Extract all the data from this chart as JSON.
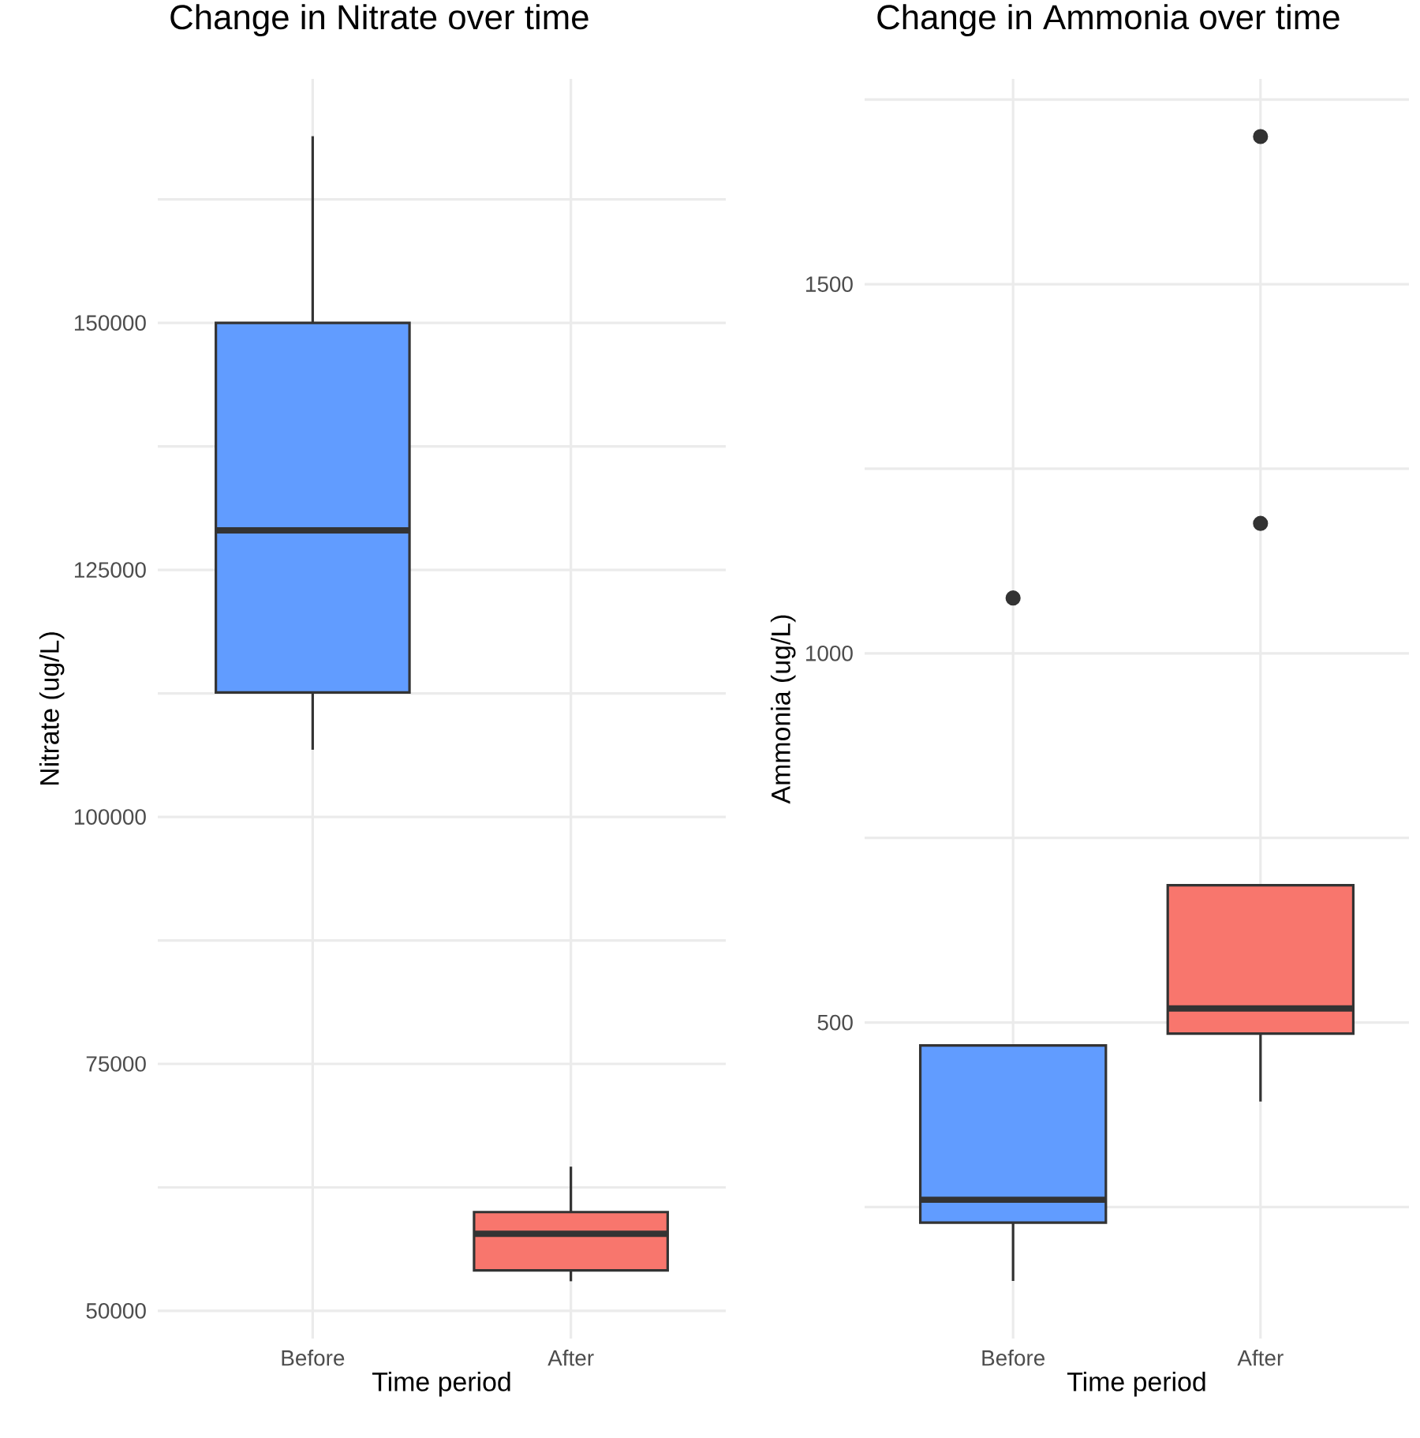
{
  "chart_data": [
    {
      "type": "box",
      "title": "Change in Nitrate over time",
      "xlabel": "Time period",
      "ylabel": "Nitrate (ug/L)",
      "categories": [
        "Before",
        "After"
      ],
      "colors": [
        "#619cff",
        "#f8766d"
      ],
      "boxes": [
        {
          "low": 106800,
          "q1": 112600,
          "median": 129000,
          "q3": 150000,
          "high": 168900
        },
        {
          "low": 53000,
          "q1": 54100,
          "median": 57800,
          "q3": 60000,
          "high": 64600
        }
      ],
      "ylim": [
        47200,
        174700
      ],
      "yticks": [
        50000,
        {
          "value": 62500,
          "label": null
        },
        75000,
        {
          "value": 87500,
          "label": null
        },
        100000,
        {
          "value": 112500,
          "label": null
        },
        125000,
        {
          "value": 137500,
          "label": null
        },
        150000,
        {
          "value": 162500,
          "label": null
        }
      ],
      "grid": true
    },
    {
      "type": "box",
      "title": "Change in Ammonia over time",
      "xlabel": "Time period",
      "ylabel": "Ammonia (ug/L)",
      "categories": [
        "Before",
        "After"
      ],
      "colors": [
        "#619cff",
        "#f8766d"
      ],
      "boxes": [
        {
          "low": 150,
          "q1": 229,
          "median": 260,
          "q3": 469,
          "high": 469,
          "outliers": [
            1075
          ]
        },
        {
          "low": 393,
          "q1": 485,
          "median": 519,
          "q3": 686,
          "high": 686,
          "outliers": [
            1176,
            1700
          ]
        }
      ],
      "ylim": [
        72,
        1778
      ],
      "yticks": [
        {
          "value": 250,
          "label": null
        },
        500,
        {
          "value": 750,
          "label": null
        },
        1000,
        {
          "value": 1250,
          "label": null
        },
        1500,
        {
          "value": 1750,
          "label": null
        }
      ],
      "grid": true
    }
  ]
}
